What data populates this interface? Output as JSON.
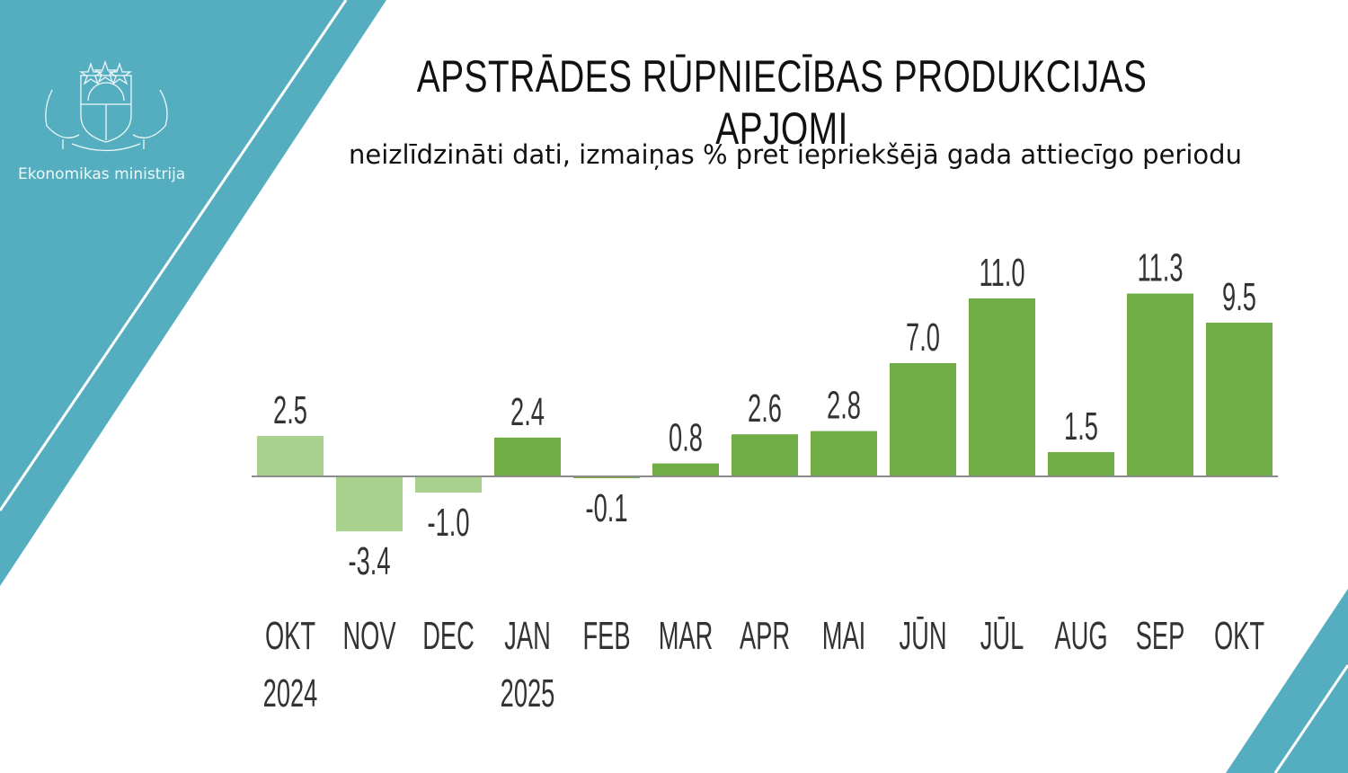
{
  "brand": {
    "organization": "Ekonomikas ministrija",
    "teal": "#55aebf"
  },
  "chart_data": {
    "type": "bar",
    "title": "APSTRĀDES RŪPNIECĪBAS PRODUKCIJAS APJOMI",
    "subtitle": "neizlīdzināti dati, izmaiņas % pret iepriekšējā gada attiecīgo periodu",
    "categories": [
      "OKT",
      "NOV",
      "DEC",
      "JAN",
      "FEB",
      "MAR",
      "APR",
      "MAI",
      "JŪN",
      "JŪL",
      "AUG",
      "SEP",
      "OKT"
    ],
    "year_labels": [
      "2024",
      "",
      "",
      "2025",
      "",
      "",
      "",
      "",
      "",
      "",
      "",
      "",
      ""
    ],
    "values": [
      2.5,
      -3.4,
      -1.0,
      2.4,
      -0.1,
      0.8,
      2.6,
      2.8,
      7.0,
      11.0,
      1.5,
      11.3,
      9.5
    ],
    "value_labels": [
      "2.5",
      "-3.4",
      "-1.0",
      "2.4",
      "-0.1",
      "0.8",
      "2.6",
      "2.8",
      "7.0",
      "11.0",
      "1.5",
      "11.3",
      "9.5"
    ],
    "colors": {
      "2024": "#a9d18e",
      "2025": "#70ad47"
    },
    "xlabel": "",
    "ylabel": "",
    "grid": false
  }
}
